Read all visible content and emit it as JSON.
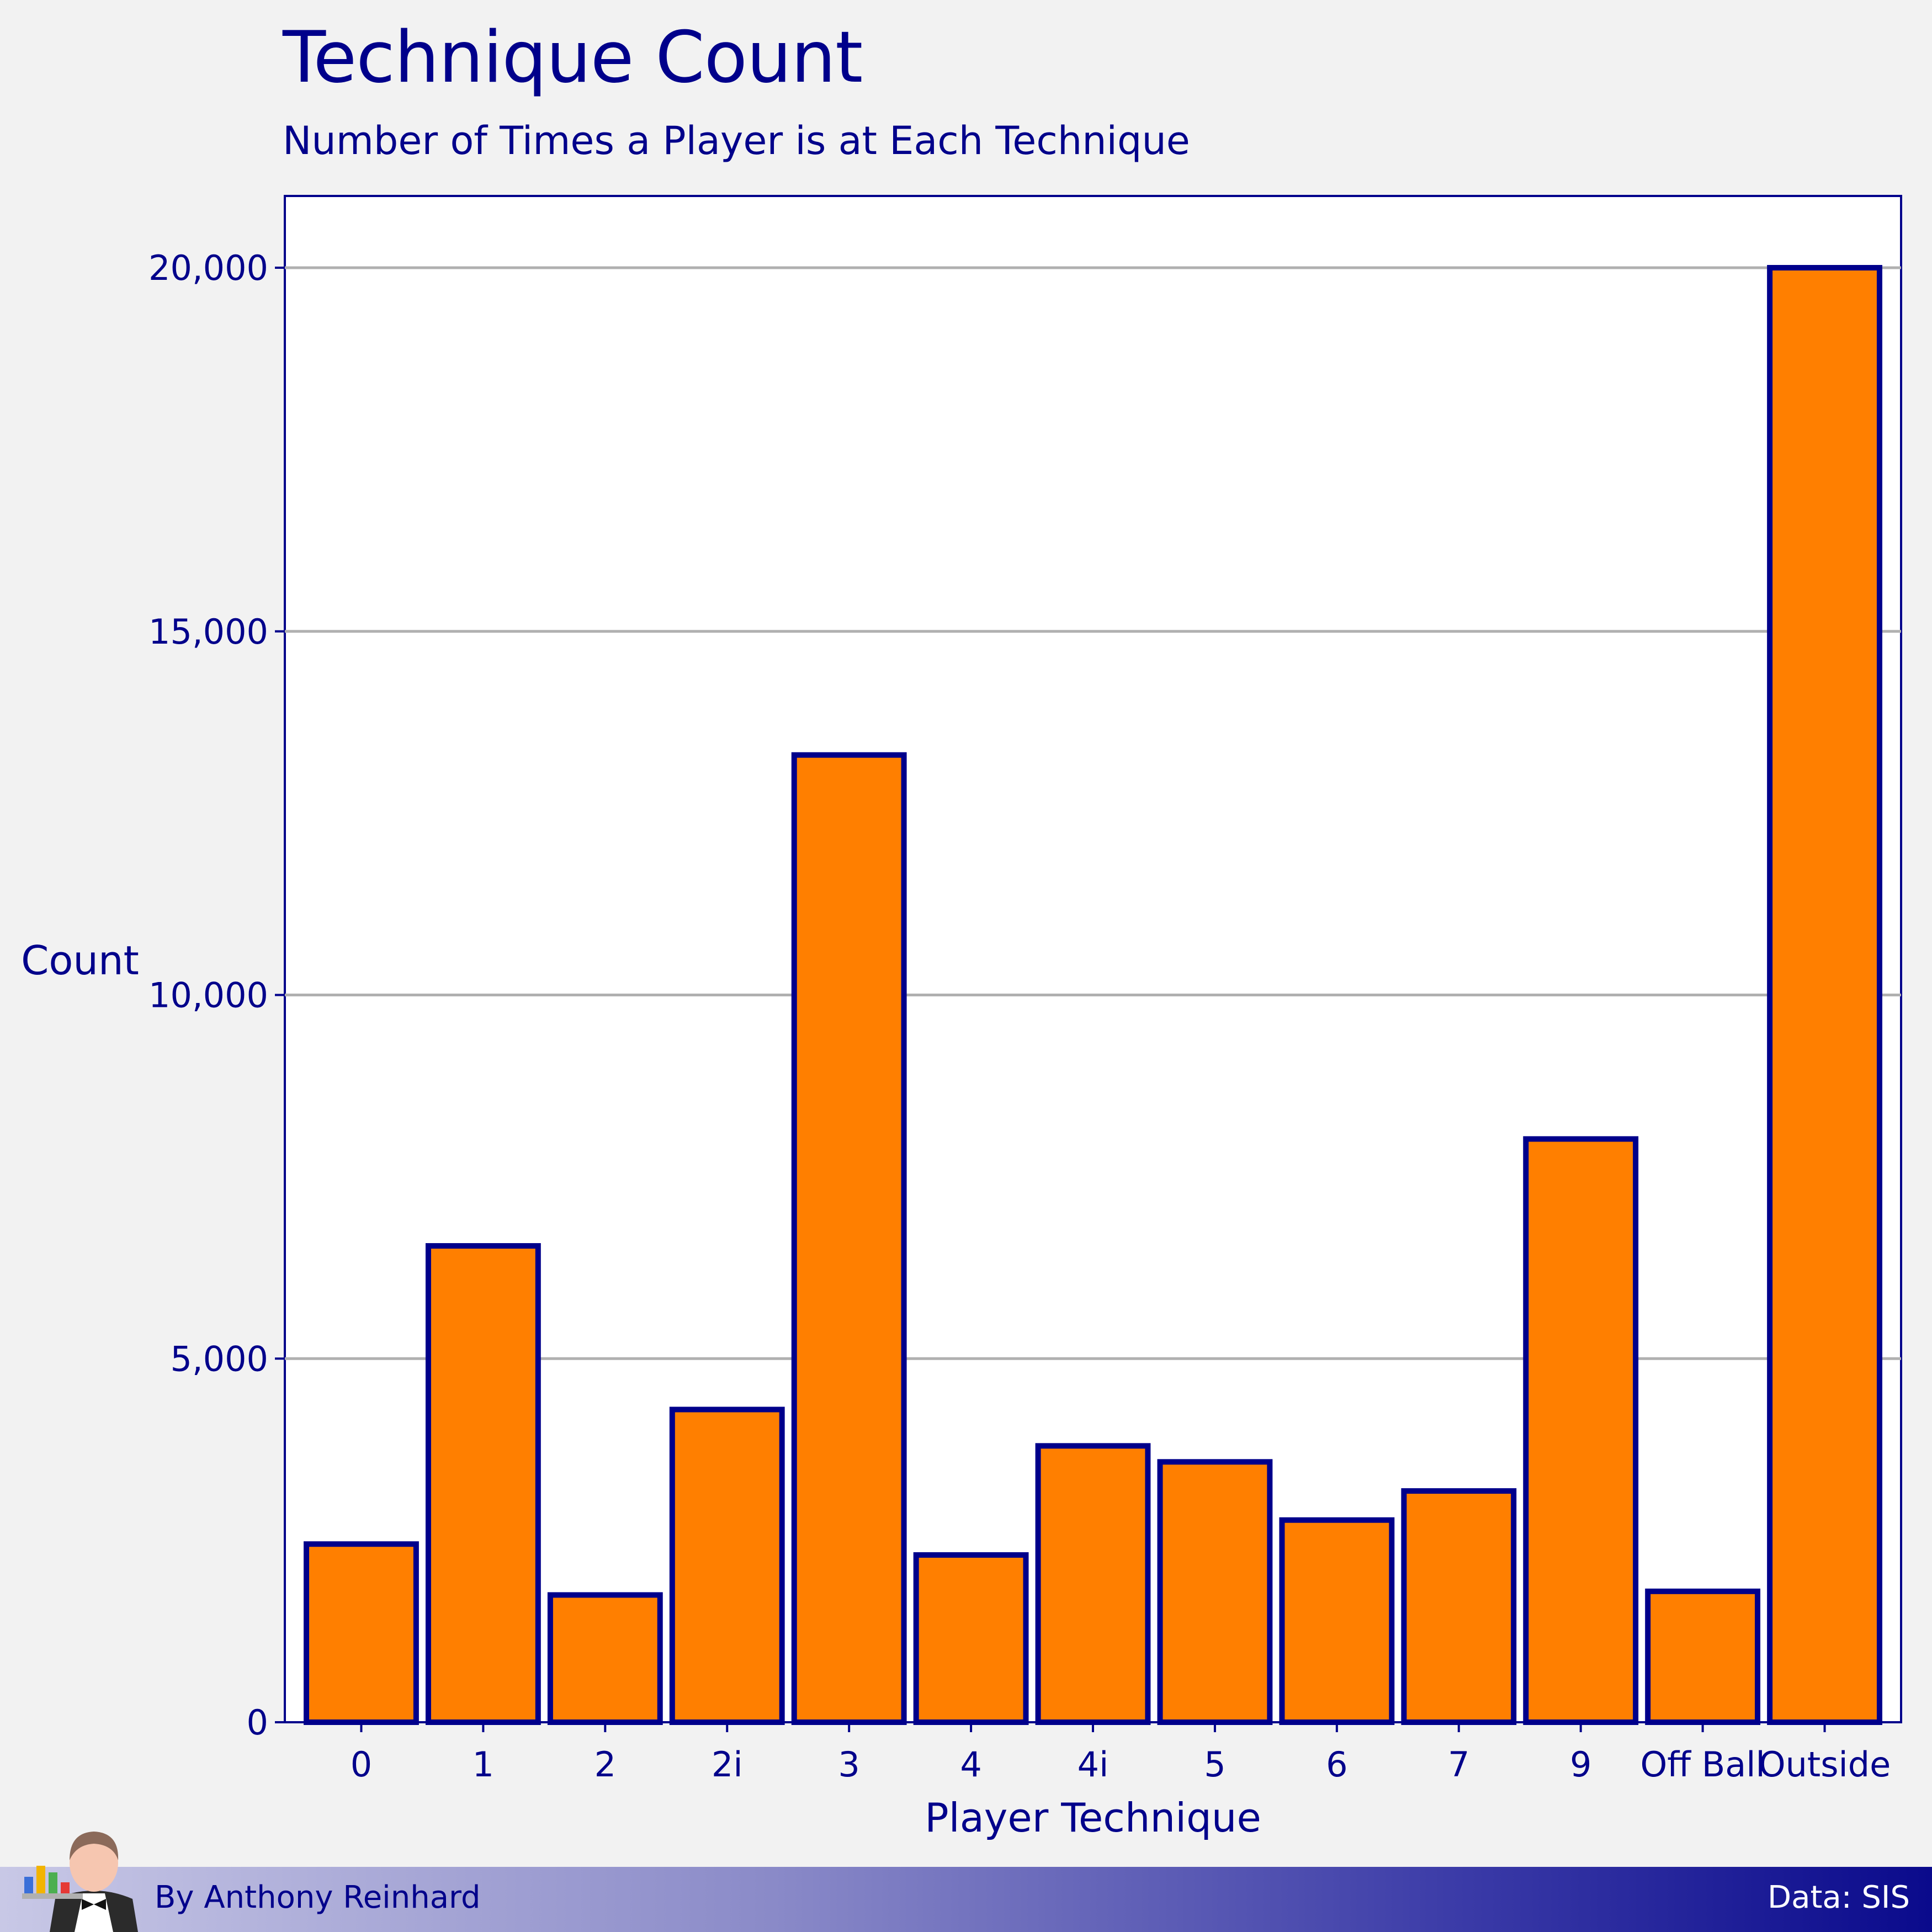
{
  "header": {
    "title": "Technique Count",
    "subtitle": "Number of Times a Player is at Each Technique"
  },
  "footer": {
    "author": "By Anthony Reinhard",
    "source": "Data: SIS"
  },
  "colors": {
    "bar_fill": "#ff7f00",
    "bar_stroke": "#00008b",
    "text": "#00008b",
    "grid": "#b0b0b0",
    "panel": "#ffffff",
    "background": "#f2f2f2"
  },
  "chart_data": {
    "type": "bar",
    "title": "Technique Count",
    "subtitle": "Number of Times a Player is at Each Technique",
    "xlabel": "Player Technique",
    "ylabel": "Count",
    "categories": [
      "0",
      "1",
      "2",
      "2i",
      "3",
      "4",
      "4i",
      "5",
      "6",
      "7",
      "9",
      "Off Ball",
      "Outside"
    ],
    "values": [
      2450,
      6550,
      1750,
      4300,
      13300,
      2300,
      3800,
      3580,
      2780,
      3180,
      8020,
      1800,
      20000
    ],
    "ylim": [
      0,
      21000
    ],
    "yticks": [
      0,
      5000,
      10000,
      15000,
      20000
    ],
    "ytick_labels": [
      "0",
      "5,000",
      "10,000",
      "15,000",
      "20,000"
    ],
    "grid": true,
    "legend": "none"
  }
}
